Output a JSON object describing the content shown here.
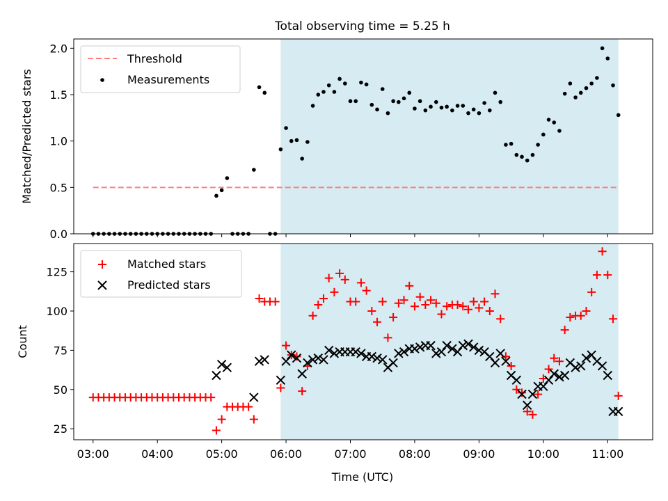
{
  "title": "Total observing time = 5.25 h",
  "colors": {
    "threshold": "#ff7f7f",
    "measurement": "#000000",
    "matched": "#ff0000",
    "predicted": "#000000",
    "observing_window": "#add8e6"
  },
  "chart_data": [
    {
      "type": "scatter",
      "panel": "top",
      "ylabel": "Matched/Predicted stars",
      "xlabel": "",
      "ylim": [
        0,
        2.1
      ],
      "yticks": [
        "0.0",
        "0.5",
        "1.0",
        "1.5",
        "2.0"
      ],
      "x_range": [
        "02:42",
        "11:42"
      ],
      "observing_window": [
        "05:55",
        "11:10"
      ],
      "legend": {
        "placement": "top-left",
        "entries": [
          "Threshold",
          "Measurements"
        ]
      },
      "threshold": {
        "name": "Threshold",
        "y": 0.5,
        "x_start": "03:00",
        "x_end": "11:10"
      },
      "series": [
        {
          "name": "Measurements",
          "x": [
            "03:00",
            "03:05",
            "03:10",
            "03:15",
            "03:20",
            "03:25",
            "03:30",
            "03:35",
            "03:40",
            "03:45",
            "03:50",
            "03:55",
            "04:00",
            "04:05",
            "04:10",
            "04:15",
            "04:20",
            "04:25",
            "04:30",
            "04:35",
            "04:40",
            "04:45",
            "04:50",
            "04:55",
            "05:00",
            "05:05",
            "05:10",
            "05:15",
            "05:20",
            "05:25",
            "05:30",
            "05:35",
            "05:40",
            "05:45",
            "05:50",
            "05:55",
            "06:00",
            "06:05",
            "06:10",
            "06:15",
            "06:20",
            "06:25",
            "06:30",
            "06:35",
            "06:40",
            "06:45",
            "06:50",
            "06:55",
            "07:00",
            "07:05",
            "07:10",
            "07:15",
            "07:20",
            "07:25",
            "07:30",
            "07:35",
            "07:40",
            "07:45",
            "07:50",
            "07:55",
            "08:00",
            "08:05",
            "08:10",
            "08:15",
            "08:20",
            "08:25",
            "08:30",
            "08:35",
            "08:40",
            "08:45",
            "08:50",
            "08:55",
            "09:00",
            "09:05",
            "09:10",
            "09:15",
            "09:20",
            "09:25",
            "09:30",
            "09:35",
            "09:40",
            "09:45",
            "09:50",
            "09:55",
            "10:00",
            "10:05",
            "10:10",
            "10:15",
            "10:20",
            "10:25",
            "10:30",
            "10:35",
            "10:40",
            "10:45",
            "10:50",
            "10:55",
            "11:00",
            "11:05",
            "11:10"
          ],
          "y": [
            0,
            0,
            0,
            0,
            0,
            0,
            0,
            0,
            0,
            0,
            0,
            0,
            0,
            0,
            0,
            0,
            0,
            0,
            0,
            0,
            0,
            0,
            0,
            0.41,
            0.47,
            0.6,
            0,
            0,
            0,
            0,
            0.69,
            1.58,
            1.52,
            0,
            0,
            0.91,
            1.14,
            1.0,
            1.01,
            0.81,
            0.99,
            1.38,
            1.5,
            1.53,
            1.6,
            1.53,
            1.67,
            1.62,
            1.43,
            1.43,
            1.63,
            1.61,
            1.39,
            1.34,
            1.56,
            1.3,
            1.43,
            1.42,
            1.46,
            1.52,
            1.35,
            1.43,
            1.33,
            1.37,
            1.42,
            1.36,
            1.37,
            1.33,
            1.38,
            1.38,
            1.3,
            1.34,
            1.3,
            1.41,
            1.33,
            1.52,
            1.42,
            0.96,
            0.97,
            0.85,
            0.83,
            0.79,
            0.85,
            0.96,
            1.07,
            1.23,
            1.2,
            1.11,
            1.51,
            1.62,
            1.47,
            1.52,
            1.57,
            1.62,
            1.68,
            2.0,
            1.89,
            1.6,
            1.28
          ]
        }
      ]
    },
    {
      "type": "scatter",
      "panel": "bottom",
      "ylabel": "Count",
      "xlabel": "Time (UTC)",
      "ylim": [
        18,
        143
      ],
      "yticks": [
        "25",
        "50",
        "75",
        "100",
        "125"
      ],
      "xticks": [
        "03:00",
        "04:00",
        "05:00",
        "06:00",
        "07:00",
        "08:00",
        "09:00",
        "10:00",
        "11:00"
      ],
      "x_range": [
        "02:42",
        "11:42"
      ],
      "observing_window": [
        "05:55",
        "11:10"
      ],
      "legend": {
        "placement": "top-left",
        "entries": [
          "Matched stars",
          "Predicted stars"
        ]
      },
      "series": [
        {
          "name": "Matched stars",
          "marker": "plus",
          "x": [
            "03:00",
            "03:05",
            "03:10",
            "03:15",
            "03:20",
            "03:25",
            "03:30",
            "03:35",
            "03:40",
            "03:45",
            "03:50",
            "03:55",
            "04:00",
            "04:05",
            "04:10",
            "04:15",
            "04:20",
            "04:25",
            "04:30",
            "04:35",
            "04:40",
            "04:45",
            "04:50",
            "04:55",
            "05:00",
            "05:05",
            "05:10",
            "05:15",
            "05:20",
            "05:25",
            "05:30",
            "05:35",
            "05:40",
            "05:45",
            "05:50",
            "05:55",
            "06:00",
            "06:05",
            "06:10",
            "06:15",
            "06:20",
            "06:25",
            "06:30",
            "06:35",
            "06:40",
            "06:45",
            "06:50",
            "06:55",
            "07:00",
            "07:05",
            "07:10",
            "07:15",
            "07:20",
            "07:25",
            "07:30",
            "07:35",
            "07:40",
            "07:45",
            "07:50",
            "07:55",
            "08:00",
            "08:05",
            "08:10",
            "08:15",
            "08:20",
            "08:25",
            "08:30",
            "08:35",
            "08:40",
            "08:45",
            "08:50",
            "08:55",
            "09:00",
            "09:05",
            "09:10",
            "09:15",
            "09:20",
            "09:25",
            "09:30",
            "09:35",
            "09:40",
            "09:45",
            "09:50",
            "09:55",
            "10:00",
            "10:05",
            "10:10",
            "10:15",
            "10:20",
            "10:25",
            "10:30",
            "10:35",
            "10:40",
            "10:45",
            "10:50",
            "10:55",
            "11:00",
            "11:05",
            "11:10"
          ],
          "y": [
            45,
            45,
            45,
            45,
            45,
            45,
            45,
            45,
            45,
            45,
            45,
            45,
            45,
            45,
            45,
            45,
            45,
            45,
            45,
            45,
            45,
            45,
            45,
            24,
            31,
            39,
            39,
            39,
            39,
            39,
            31,
            108,
            106,
            106,
            106,
            51,
            78,
            72,
            71,
            49,
            65,
            97,
            104,
            108,
            121,
            112,
            124,
            120,
            106,
            106,
            118,
            113,
            100,
            93,
            106,
            83,
            96,
            105,
            107,
            116,
            103,
            109,
            104,
            107,
            105,
            98,
            103,
            104,
            104,
            103,
            101,
            106,
            102,
            106,
            100,
            111,
            95,
            71,
            65,
            50,
            48,
            36,
            34,
            47,
            57,
            63,
            70,
            68,
            88,
            96,
            97,
            97,
            100,
            112,
            123,
            138,
            123,
            95,
            46
          ]
        },
        {
          "name": "Predicted stars",
          "marker": "x",
          "x": [
            "04:55",
            "05:00",
            "05:05",
            "05:30",
            "05:35",
            "05:40",
            "05:55",
            "06:00",
            "06:05",
            "06:10",
            "06:15",
            "06:20",
            "06:25",
            "06:30",
            "06:35",
            "06:40",
            "06:45",
            "06:50",
            "06:55",
            "07:00",
            "07:05",
            "07:10",
            "07:15",
            "07:20",
            "07:25",
            "07:30",
            "07:35",
            "07:40",
            "07:45",
            "07:50",
            "07:55",
            "08:00",
            "08:05",
            "08:10",
            "08:15",
            "08:20",
            "08:25",
            "08:30",
            "08:35",
            "08:40",
            "08:45",
            "08:50",
            "08:55",
            "09:00",
            "09:05",
            "09:10",
            "09:15",
            "09:20",
            "09:25",
            "09:30",
            "09:35",
            "09:40",
            "09:45",
            "09:50",
            "09:55",
            "10:00",
            "10:05",
            "10:10",
            "10:15",
            "10:20",
            "10:25",
            "10:30",
            "10:35",
            "10:40",
            "10:45",
            "10:50",
            "10:55",
            "11:00",
            "11:05",
            "11:10"
          ],
          "y": [
            59,
            66,
            64,
            45,
            68,
            69,
            56,
            68,
            72,
            70,
            60,
            67,
            69,
            70,
            69,
            75,
            73,
            74,
            74,
            74,
            74,
            73,
            71,
            71,
            70,
            69,
            64,
            67,
            73,
            74,
            76,
            76,
            77,
            78,
            78,
            73,
            74,
            78,
            76,
            74,
            78,
            79,
            77,
            75,
            74,
            71,
            67,
            73,
            68,
            59,
            56,
            47,
            40,
            47,
            52,
            52,
            56,
            60,
            58,
            59,
            67,
            64,
            65,
            70,
            72,
            68,
            65,
            59,
            36,
            36
          ]
        }
      ]
    }
  ]
}
